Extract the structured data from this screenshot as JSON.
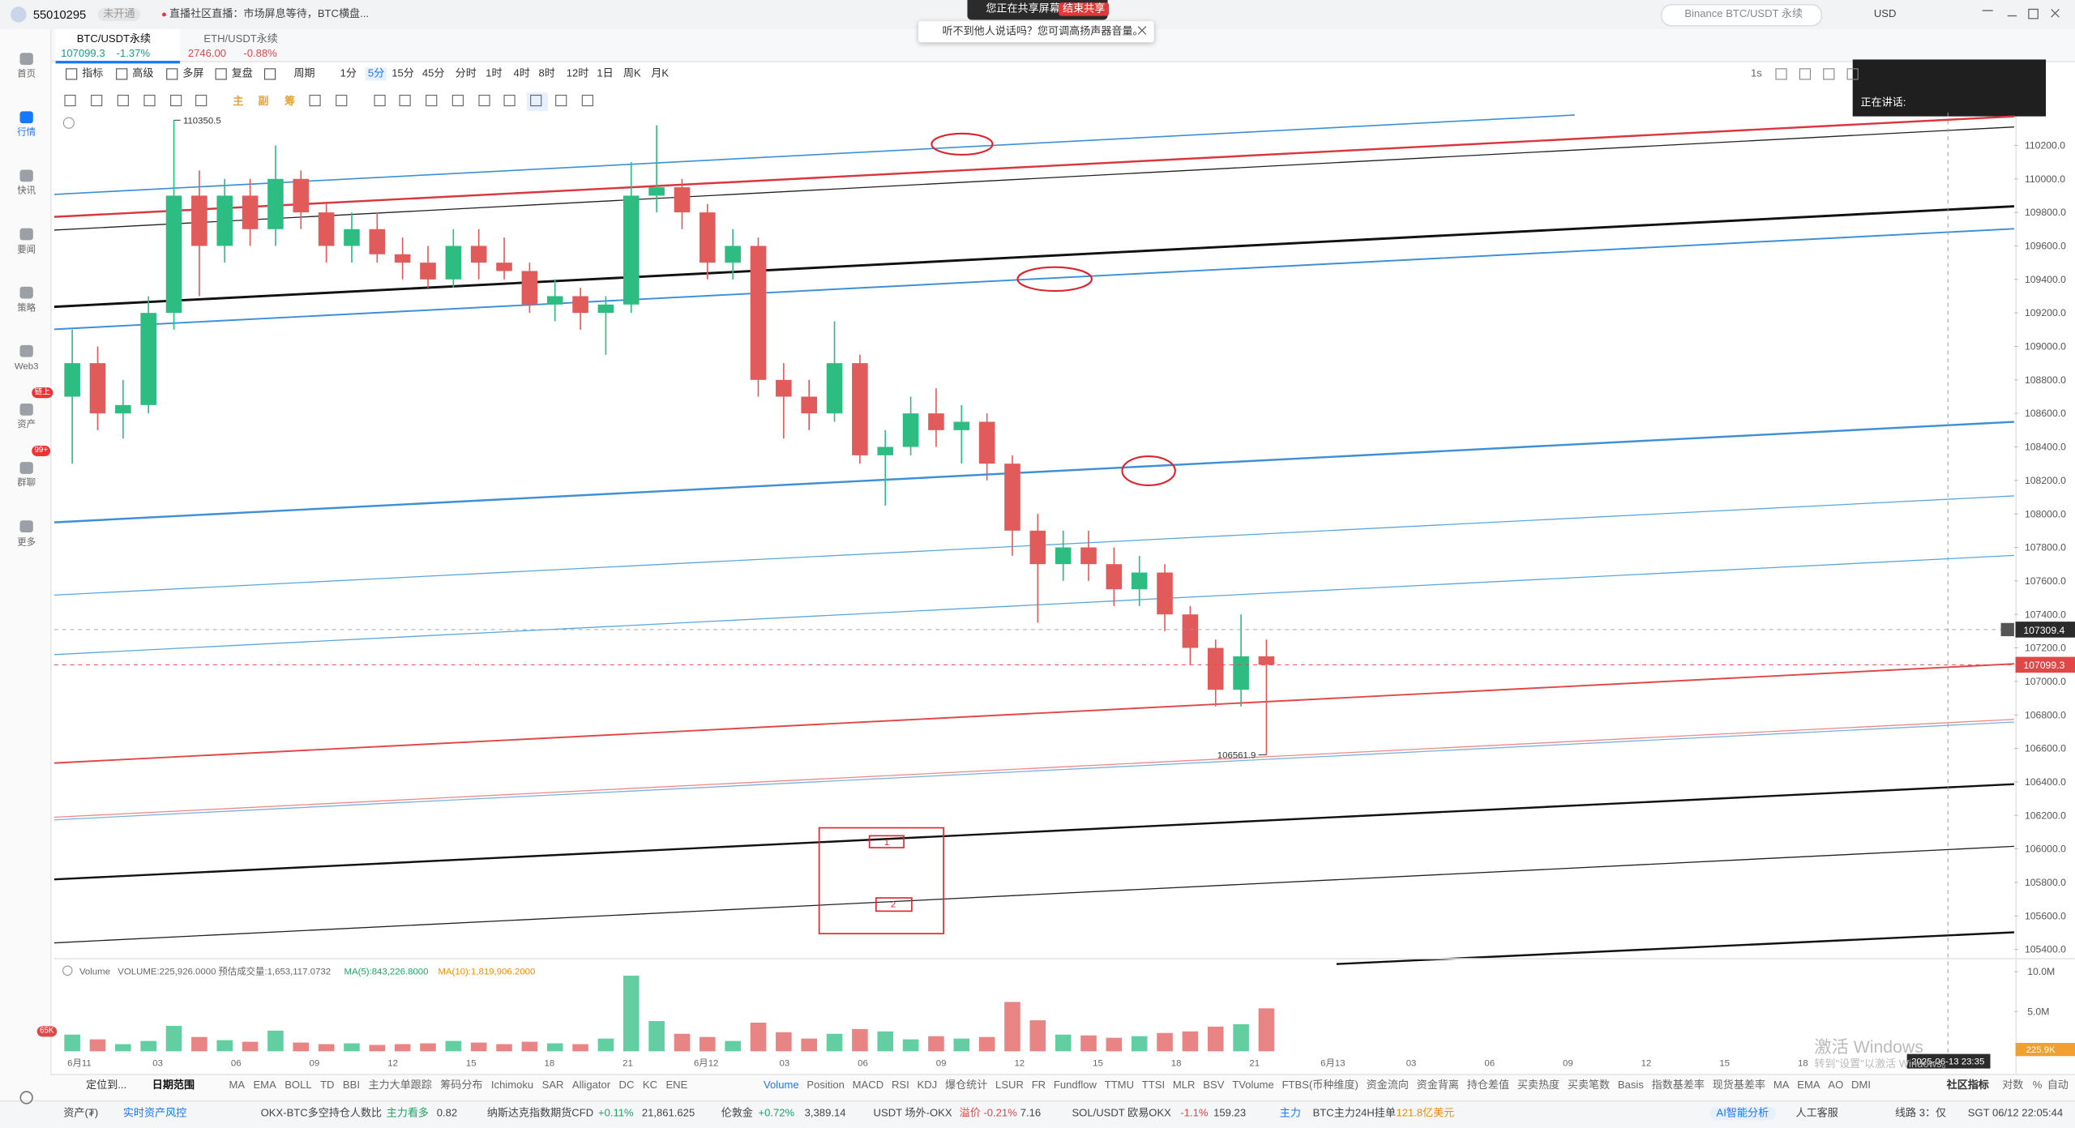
{
  "top_bar": {
    "account": "55010295",
    "account_status": "未开通",
    "news": "直播社区直播：市场屏息等待，BTC横盘...",
    "share_notice": "您正在共享屏幕",
    "share_stop": "结束共享",
    "search": "Binance BTC/USDT 永续",
    "currency": "USD"
  },
  "audio_notice": "听不到他人说话吗？您可调高扬声器音量。",
  "sidebar": [
    {
      "label": "首页"
    },
    {
      "label": "行情"
    },
    {
      "label": "快讯"
    },
    {
      "label": "要闻"
    },
    {
      "label": "策略"
    },
    {
      "label": "Web3"
    },
    {
      "label": "资产",
      "badge": "链上"
    },
    {
      "label": "群聊",
      "badge": "99+"
    },
    {
      "label": "更多"
    }
  ],
  "tabs": [
    {
      "symbol": "BTC/USDT永续",
      "price": "107099.3",
      "change": "-1.37%"
    },
    {
      "symbol": "ETH/USDT永续",
      "price": "2746.00",
      "change": "-0.88%"
    }
  ],
  "toolbar": [
    "指标",
    "高级",
    "多屏",
    "复盘",
    "周期",
    "1分",
    "5分",
    "15分",
    "45分",
    "分时",
    "1时",
    "4时",
    "8时",
    "12时",
    "1日",
    "周K",
    "月K"
  ],
  "toolbar_right": "1s",
  "drawing_toolbar": [
    "主",
    "副",
    "筹"
  ],
  "speaking_panel": "正在讲话:",
  "chart_data": {
    "type": "candlestick",
    "open": [
      108700,
      108900,
      108600,
      108650,
      109200,
      109900,
      109600,
      109900,
      109700,
      110000,
      109800,
      109600,
      109700,
      109550,
      109500,
      109400,
      109600,
      109500,
      109450,
      109250,
      109300,
      109200,
      109250,
      109900,
      109950,
      109800,
      109500,
      109600,
      108800,
      108700,
      108600,
      108900,
      108350,
      108400,
      108600,
      108500,
      108550,
      108300,
      107900,
      107700,
      107800,
      107700,
      107550,
      107650,
      107400,
      107200,
      106950,
      107150
    ],
    "high": [
      109100,
      109000,
      108800,
      109300,
      110350.5,
      110050,
      110000,
      110000,
      110200,
      110050,
      109850,
      109800,
      109800,
      109650,
      109600,
      109700,
      109700,
      109650,
      109500,
      109400,
      109350,
      109300,
      110100,
      110320,
      110000,
      109850,
      109700,
      109650,
      108900,
      108800,
      109150,
      108950,
      108500,
      108700,
      108750,
      108650,
      108600,
      108350,
      108000,
      107900,
      107900,
      107800,
      107750,
      107700,
      107450,
      107250,
      107400,
      107250
    ],
    "low": [
      108300,
      108500,
      108450,
      108600,
      109100,
      109300,
      109500,
      109600,
      109600,
      109700,
      109500,
      109500,
      109500,
      109400,
      109350,
      109350,
      109400,
      109400,
      109200,
      109150,
      109100,
      108950,
      109200,
      109800,
      109700,
      109400,
      109400,
      108700,
      108450,
      108500,
      108550,
      108300,
      108050,
      108350,
      108400,
      108300,
      108200,
      107750,
      107350,
      107600,
      107600,
      107450,
      107450,
      107300,
      107100,
      106850,
      106850,
      106561.9
    ],
    "close": [
      108900,
      108600,
      108650,
      109200,
      109900,
      109600,
      109900,
      109700,
      110000,
      109800,
      109600,
      109700,
      109550,
      109500,
      109400,
      109600,
      109500,
      109450,
      109250,
      109300,
      109200,
      109250,
      109900,
      109950,
      109800,
      109500,
      109600,
      108800,
      108700,
      108600,
      108900,
      108350,
      108400,
      108600,
      108500,
      108550,
      108300,
      107900,
      107700,
      107800,
      107700,
      107550,
      107650,
      107400,
      107200,
      106950,
      107150,
      107099.3
    ],
    "ylim": [
      105368,
      110397
    ],
    "yticks": [
      {
        "value": 105400,
        "label": "105400.0"
      },
      {
        "value": 105600,
        "label": "105600.0"
      },
      {
        "value": 105800,
        "label": "105800.0"
      },
      {
        "value": 106000,
        "label": "106000.0"
      },
      {
        "value": 106200,
        "label": "106200.0"
      },
      {
        "value": 106400,
        "label": "106400.0"
      },
      {
        "value": 106600,
        "label": "106600.0"
      },
      {
        "value": 106800,
        "label": "106800.0"
      },
      {
        "value": 107000,
        "label": "107000.0"
      },
      {
        "value": 107200,
        "label": "107200.0"
      },
      {
        "value": 107400,
        "label": "107400.0"
      },
      {
        "value": 107600,
        "label": "107600.0"
      },
      {
        "value": 107800,
        "label": "107800.0"
      },
      {
        "value": 108000,
        "label": "108000.0"
      },
      {
        "value": 108200,
        "label": "108200.0"
      },
      {
        "value": 108400,
        "label": "108400.0"
      },
      {
        "value": 108600,
        "label": "108600.0"
      },
      {
        "value": 108800,
        "label": "108800.0"
      },
      {
        "value": 109000,
        "label": "109000.0"
      },
      {
        "value": 109200,
        "label": "109200.0"
      },
      {
        "value": 109400,
        "label": "109400.0"
      },
      {
        "value": 109600,
        "label": "109600.0"
      },
      {
        "value": 109800,
        "label": "109800.0"
      },
      {
        "value": 110000,
        "label": "110000.0"
      },
      {
        "value": 110200,
        "label": "110200.0"
      }
    ],
    "annotations": {
      "high": "110350.5",
      "low": "106561.9"
    },
    "last_price": {
      "value": 107099.3,
      "label": "107099.3"
    },
    "crosshair": {
      "value": 107309.4,
      "label": "107309.4",
      "time": "2025-06-13 23:35"
    },
    "x_labels": [
      "6月11",
      "03",
      "06",
      "09",
      "12",
      "15",
      "18",
      "21",
      "6月12",
      "03",
      "06",
      "09",
      "12",
      "15",
      "18",
      "21",
      "6月13",
      "03",
      "06",
      "09",
      "12",
      "15",
      "18"
    ],
    "shape_labels": [
      "1",
      "2"
    ]
  },
  "volume_chart": {
    "type": "bar",
    "header": [
      "Volume",
      "VOLUME:225,926.0000",
      "预估成交量:1,653,117.0732",
      "MA(5):843,226.8000",
      "MA(10):1,819,906.2000"
    ],
    "values": [
      2100000,
      1500000,
      900000,
      1300000,
      3200000,
      1800000,
      1400000,
      1200000,
      2600000,
      1100000,
      900000,
      1000000,
      800000,
      900000,
      1000000,
      1300000,
      1100000,
      900000,
      1200000,
      1000000,
      900000,
      1600000,
      9500000,
      3800000,
      2200000,
      1800000,
      1300000,
      3600000,
      2400000,
      1600000,
      2200000,
      2800000,
      2500000,
      1500000,
      1900000,
      1600000,
      1800000,
      6200000,
      3900000,
      2100000,
      2000000,
      1700000,
      1900000,
      2300000,
      2500000,
      3100000,
      3400000,
      5400000
    ],
    "ylim": [
      0,
      11300000
    ],
    "yticks": [
      {
        "value": 5000000,
        "label": "5.0M"
      },
      {
        "value": 10000000,
        "label": "10.0M"
      }
    ],
    "current": {
      "value": 225926,
      "label": "225.9K"
    }
  },
  "indicator_bar": {
    "locate": "定位到...",
    "date_range": "日期范围",
    "main": [
      "MA",
      "EMA",
      "BOLL",
      "TD",
      "BBI",
      "主力大单跟踪",
      "筹码分布",
      "Ichimoku",
      "SAR",
      "Alligator",
      "DC",
      "KC",
      "ENE"
    ],
    "sub": [
      "Volume",
      "Position",
      "MACD",
      "RSI",
      "KDJ",
      "爆仓统计",
      "LSUR",
      "FR",
      "Fundflow",
      "TTMU",
      "TTSI",
      "MLR",
      "BSV",
      "TVolume",
      "FTBS(币种维度)",
      "资金流向",
      "资金背离",
      "持仓差值",
      "买卖热度",
      "买卖笔数",
      "Basis",
      "指数基差率",
      "现货基差率",
      "MA",
      "EMA",
      "AO",
      "DMI"
    ],
    "community": "社区指标",
    "options": [
      "对数",
      "%",
      "自动"
    ]
  },
  "status_bar": [
    "资产(₮)",
    "实时资产风控",
    "OKX-BTC多空持仓人数比",
    "主力看多",
    "0.82",
    "纳斯达克指数期货CFD",
    "+0.11%",
    "21,861.625",
    "伦敦金",
    "+0.72%",
    "3,389.14",
    "USDT 场外-OKX",
    "溢价 -0.21%",
    "7.16",
    "SOL/USDT 欧易OKX",
    "-1.1%",
    "159.23",
    "主力",
    "BTC主力24H挂单",
    "121.8亿美元",
    "AI智能分析",
    "人工客服",
    "线路 3：仅",
    "SGT 06/12 22:05:44"
  ],
  "badge_bottom_left": "65K",
  "watermark": [
    "激活 Windows",
    "转到\"设置\"以激活 Windows。"
  ]
}
